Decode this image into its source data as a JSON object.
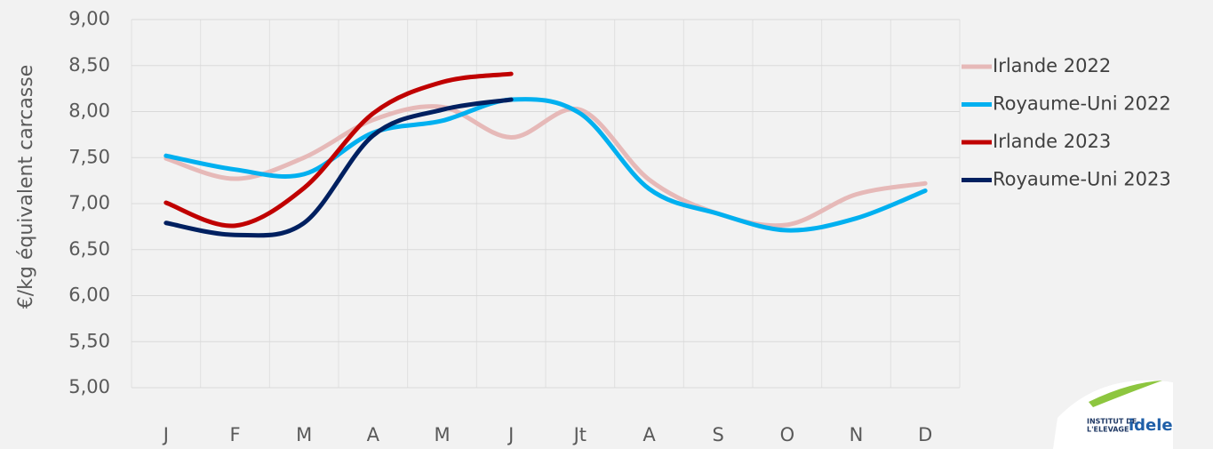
{
  "chart_data": {
    "type": "line",
    "y_label": "€/kg équivalent carcasse",
    "categories": [
      "J",
      "F",
      "M",
      "A",
      "M",
      "J",
      "Jt",
      "A",
      "S",
      "O",
      "N",
      "D"
    ],
    "ylim": [
      5,
      9
    ],
    "yticks": [
      {
        "value": 5,
        "label": "5,00"
      },
      {
        "value": 5.5,
        "label": "5,50"
      },
      {
        "value": 6,
        "label": "6,00"
      },
      {
        "value": 6.5,
        "label": "6,50"
      },
      {
        "value": 7,
        "label": "7,00"
      },
      {
        "value": 7.5,
        "label": "7,50"
      },
      {
        "value": 8,
        "label": "8,00"
      },
      {
        "value": 8.5,
        "label": "8,50"
      },
      {
        "value": 9,
        "label": "9,00"
      }
    ],
    "grid": true,
    "legend": "right",
    "series": [
      {
        "name": "Irlande 2022",
        "color": "#e6b9b8",
        "values": [
          7.49,
          7.27,
          7.5,
          7.91,
          8.05,
          7.72,
          8.02,
          7.26,
          6.89,
          6.77,
          7.1,
          7.22
        ]
      },
      {
        "name": "Royaume-Uni 2022",
        "color": "#00b0f0",
        "values": [
          7.52,
          7.37,
          7.32,
          7.77,
          7.9,
          8.13,
          7.98,
          7.16,
          6.89,
          6.71,
          6.84,
          7.14
        ]
      },
      {
        "name": "Irlande 2023",
        "color": "#c00000",
        "values": [
          7.01,
          6.76,
          7.17,
          7.98,
          8.32,
          8.41,
          null,
          null,
          null,
          null,
          null,
          null
        ]
      },
      {
        "name": "Royaume-Uni 2023",
        "color": "#002060",
        "values": [
          6.79,
          6.66,
          6.79,
          7.74,
          8.02,
          8.13,
          null,
          null,
          null,
          null,
          null,
          null
        ]
      }
    ]
  },
  "logo": {
    "line1": "INSTITUT DE",
    "line2": "L'ELEVAGE",
    "brand": "idele"
  }
}
